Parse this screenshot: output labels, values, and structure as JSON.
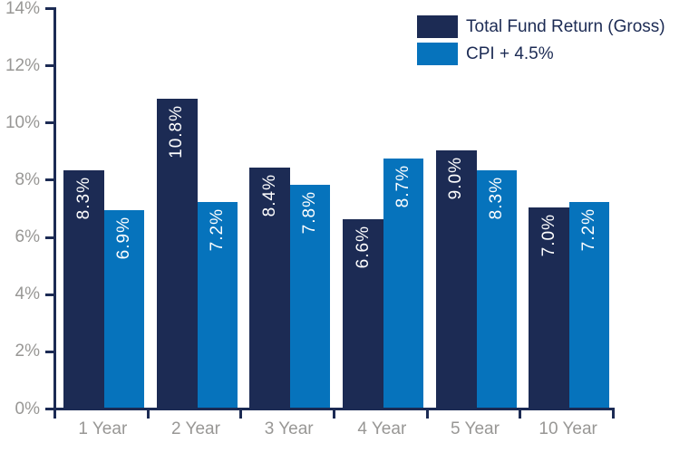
{
  "chart_data": {
    "type": "bar",
    "categories": [
      "1 Year",
      "2 Year",
      "3 Year",
      "4 Year",
      "5 Year",
      "10 Year"
    ],
    "series": [
      {
        "name": "Total Fund Return (Gross)",
        "color": "#1C2B54",
        "values": [
          8.3,
          10.8,
          8.4,
          6.6,
          9.0,
          7.0
        ],
        "labels": [
          "8.3%",
          "10.8%",
          "8.4%",
          "6.6%",
          "9.0%",
          "7.0%"
        ]
      },
      {
        "name": "CPI + 4.5%",
        "color": "#0673BC",
        "values": [
          6.9,
          7.2,
          7.8,
          8.7,
          8.3,
          7.2
        ],
        "labels": [
          "6.9%",
          "7.2%",
          "7.8%",
          "8.7%",
          "8.3%",
          "7.2%"
        ]
      }
    ],
    "title": "",
    "xlabel": "",
    "ylabel": "",
    "ylim": [
      0,
      14
    ],
    "ytick_step": 2,
    "ytick_labels": [
      "0%",
      "2%",
      "4%",
      "6%",
      "8%",
      "10%",
      "12%",
      "14%"
    ],
    "grid": false,
    "legend_position": "top-right",
    "value_label_color": "#FFFFFF",
    "axis_color": "#1C2B54",
    "tick_label_color": "#989795"
  }
}
